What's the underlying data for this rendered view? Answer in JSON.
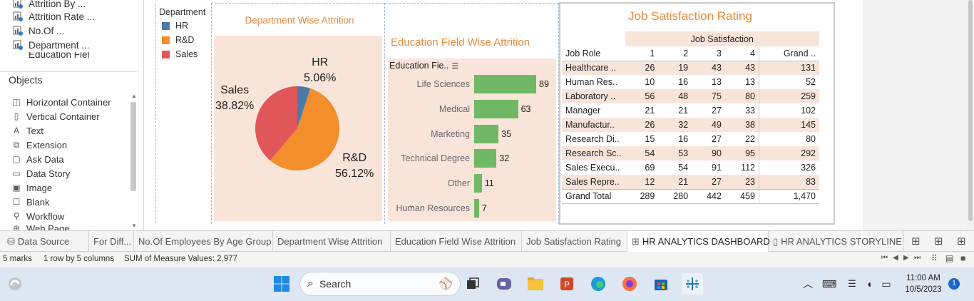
{
  "left_panel": {
    "sheets": [
      "Attrition By ...",
      "Attrition Rate ...",
      "No.Of ...",
      "Department ...",
      "Education Fiel"
    ],
    "objects_header": "Objects",
    "objects": [
      "Horizontal Container",
      "Vertical Container",
      "Text",
      "Extension",
      "Ask Data",
      "Data Story",
      "Image",
      "Blank",
      "Workflow",
      "Web Page"
    ]
  },
  "legend": {
    "title": "Department",
    "items": [
      {
        "label": "HR",
        "color": "#4e79a7"
      },
      {
        "label": "R&D",
        "color": "#f28e2b"
      },
      {
        "label": "Sales",
        "color": "#e15759"
      }
    ]
  },
  "department_chart": {
    "title": "Department Wise Attrition",
    "labels": [
      {
        "name": "HR",
        "pct": "5.06%"
      },
      {
        "name": "R&D",
        "pct": "56.12%"
      },
      {
        "name": "Sales",
        "pct": "38.82%"
      }
    ]
  },
  "education_chart": {
    "title": "Education Field Wise Attrition",
    "field_header": "Education Fie..",
    "sort_icon": "sort-descending-icon"
  },
  "job_satisfaction": {
    "title": "Job Satisfaction Rating",
    "group_header": "Job Satisfaction",
    "col_role": "Job Role",
    "cols": [
      "1",
      "2",
      "3",
      "4",
      "Grand .."
    ],
    "rows": [
      {
        "role": "Healthcare ..",
        "v": [
          "26",
          "19",
          "43",
          "43",
          "131"
        ]
      },
      {
        "role": "Human Res..",
        "v": [
          "10",
          "16",
          "13",
          "13",
          "52"
        ]
      },
      {
        "role": "Laboratory ..",
        "v": [
          "56",
          "48",
          "75",
          "80",
          "259"
        ]
      },
      {
        "role": "Manager",
        "v": [
          "21",
          "21",
          "27",
          "33",
          "102"
        ]
      },
      {
        "role": "Manufactur..",
        "v": [
          "26",
          "32",
          "49",
          "38",
          "145"
        ]
      },
      {
        "role": "Research Di..",
        "v": [
          "15",
          "16",
          "27",
          "22",
          "80"
        ]
      },
      {
        "role": "Research Sc..",
        "v": [
          "54",
          "53",
          "90",
          "95",
          "292"
        ]
      },
      {
        "role": "Sales Execu..",
        "v": [
          "69",
          "54",
          "91",
          "112",
          "326"
        ]
      },
      {
        "role": "Sales Repre..",
        "v": [
          "12",
          "21",
          "27",
          "23",
          "83"
        ]
      }
    ],
    "total": {
      "role": "Grand Total",
      "v": [
        "289",
        "280",
        "442",
        "459",
        "1,470"
      ]
    }
  },
  "chart_data": [
    {
      "type": "pie",
      "title": "Department Wise Attrition",
      "categories": [
        "HR",
        "R&D",
        "Sales"
      ],
      "values": [
        5.06,
        56.12,
        38.82
      ],
      "colors": [
        "#4e79a7",
        "#f28e2b",
        "#e15759"
      ]
    },
    {
      "type": "bar",
      "title": "Education Field Wise Attrition",
      "orientation": "horizontal",
      "categories": [
        "Life Sciences",
        "Medical",
        "Marketing",
        "Technical Degree",
        "Other",
        "Human Resources"
      ],
      "values": [
        89,
        63,
        35,
        32,
        11,
        7
      ],
      "color": "#70b865",
      "xlim": [
        0,
        100
      ]
    }
  ],
  "tabs": {
    "items": [
      {
        "label": "Data Source",
        "icon": "database-icon"
      },
      {
        "label": "For Diff..."
      },
      {
        "label": "No.Of Employees By Age Group"
      },
      {
        "label": "Department Wise Attrition"
      },
      {
        "label": "Education Field Wise Attrition"
      },
      {
        "label": "Job Satisfaction Rating"
      },
      {
        "label": "HR ANALYTICS DASHBOARD",
        "icon": "dashboard-icon",
        "active": true
      },
      {
        "label": "HR ANALYTICS STORYLINE",
        "icon": "story-icon"
      }
    ]
  },
  "status": {
    "marks": "5 marks",
    "dims": "1 row by 5 columns",
    "sum": "SUM of Measure Values: 2,977"
  },
  "taskbar": {
    "search_placeholder": "Search",
    "time": "11:00 AM",
    "date": "10/5/2023",
    "notification_count": "1"
  }
}
